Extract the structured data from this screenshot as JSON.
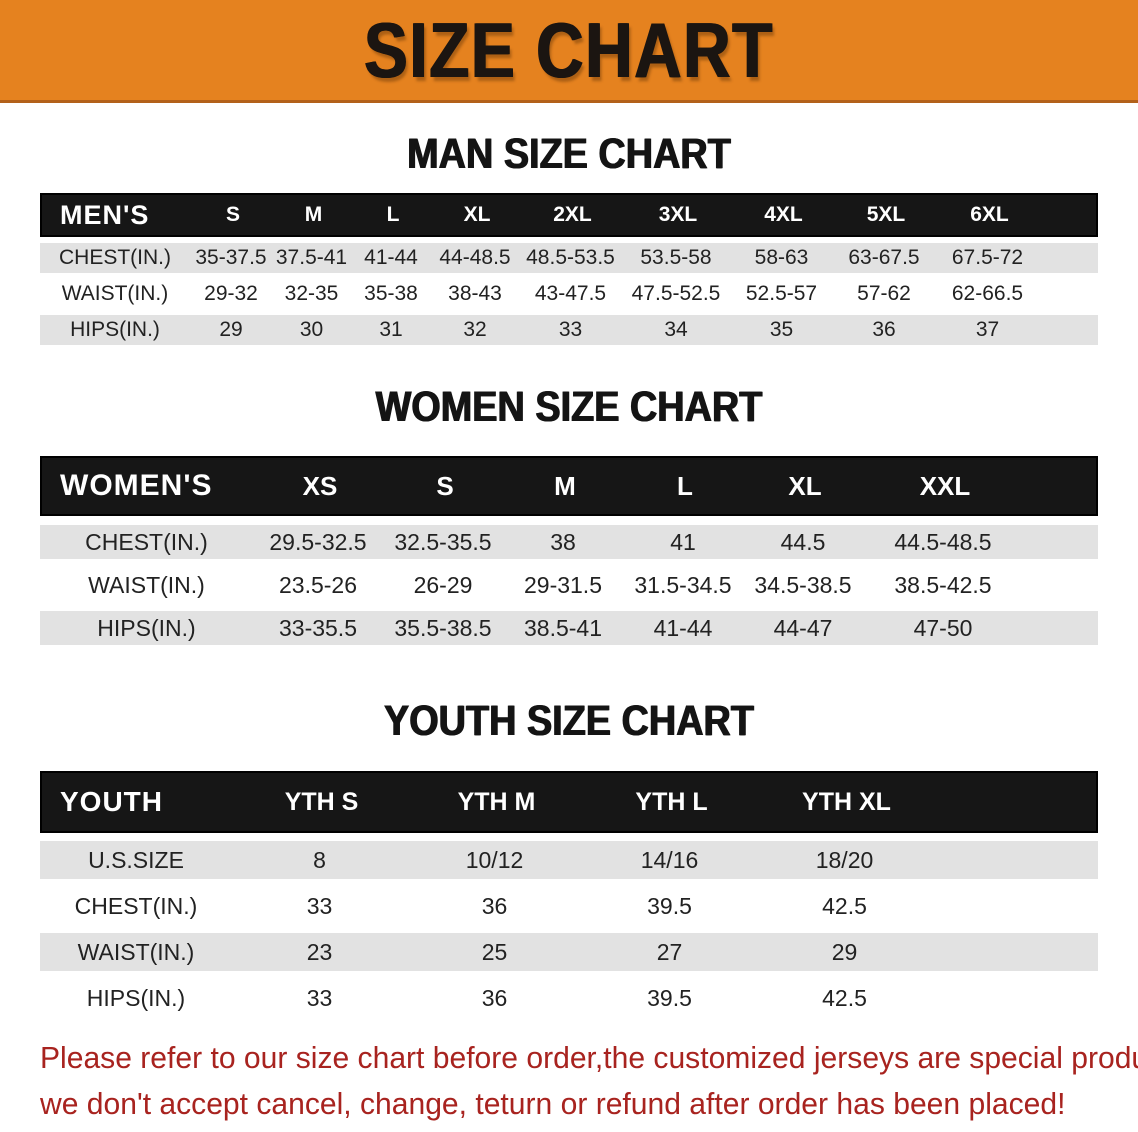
{
  "banner": {
    "title": "SIZE CHART",
    "bg_color": "#E5821F",
    "text_color": "#1B1511"
  },
  "sections": [
    {
      "id": "men",
      "heading": "MAN SIZE CHART",
      "table": {
        "corner_label": "MEN'S",
        "columns": [
          "S",
          "M",
          "L",
          "XL",
          "2XL",
          "3XL",
          "4XL",
          "5XL",
          "6XL"
        ],
        "rows": [
          {
            "label": "CHEST(IN.)",
            "values": [
              "35-37.5",
              "37.5-41",
              "41-44",
              "44-48.5",
              "48.5-53.5",
              "53.5-58",
              "58-63",
              "63-67.5",
              "67.5-72"
            ]
          },
          {
            "label": "WAIST(IN.)",
            "values": [
              "29-32",
              "32-35",
              "35-38",
              "38-43",
              "43-47.5",
              "47.5-52.5",
              "52.5-57",
              "57-62",
              "62-66.5"
            ]
          },
          {
            "label": "HIPS(IN.)",
            "values": [
              "29",
              "30",
              "31",
              "32",
              "33",
              "34",
              "35",
              "36",
              "37"
            ]
          }
        ]
      }
    },
    {
      "id": "women",
      "heading": "WOMEN SIZE CHART",
      "table": {
        "corner_label": "WOMEN'S",
        "columns": [
          "XS",
          "S",
          "M",
          "L",
          "XL",
          "XXL"
        ],
        "rows": [
          {
            "label": "CHEST(IN.)",
            "values": [
              "29.5-32.5",
              "32.5-35.5",
              "38",
              "41",
              "44.5",
              "44.5-48.5"
            ]
          },
          {
            "label": "WAIST(IN.)",
            "values": [
              "23.5-26",
              "26-29",
              "29-31.5",
              "31.5-34.5",
              "34.5-38.5",
              "38.5-42.5"
            ]
          },
          {
            "label": "HIPS(IN.)",
            "values": [
              "33-35.5",
              "35.5-38.5",
              "38.5-41",
              "41-44",
              "44-47",
              "47-50"
            ]
          }
        ]
      }
    },
    {
      "id": "youth",
      "heading": "YOUTH SIZE CHART",
      "table": {
        "corner_label": "YOUTH",
        "columns": [
          "YTH S",
          "YTH M",
          "YTH L",
          "YTH XL"
        ],
        "rows": [
          {
            "label": "U.S.SIZE",
            "values": [
              "8",
              "10/12",
              "14/16",
              "18/20"
            ]
          },
          {
            "label": "CHEST(IN.)",
            "values": [
              "33",
              "36",
              "39.5",
              "42.5"
            ]
          },
          {
            "label": "WAIST(IN.)",
            "values": [
              "23",
              "25",
              "27",
              "29"
            ]
          },
          {
            "label": "HIPS(IN.)",
            "values": [
              "33",
              "36",
              "39.5",
              "42.5"
            ]
          }
        ]
      }
    }
  ],
  "footer_note": {
    "line1": "Please refer to our size chart before order,the customized jerseys are special products,",
    "line2": "we don't accept cancel, change, teturn or refund after order has been placed!",
    "color": "#A8231F"
  },
  "colors": {
    "header_bar_bg": "#161616",
    "header_bar_text": "#FFFFFF",
    "row_stripe": "#E2E2E2",
    "row_plain": "#FFFFFF"
  }
}
